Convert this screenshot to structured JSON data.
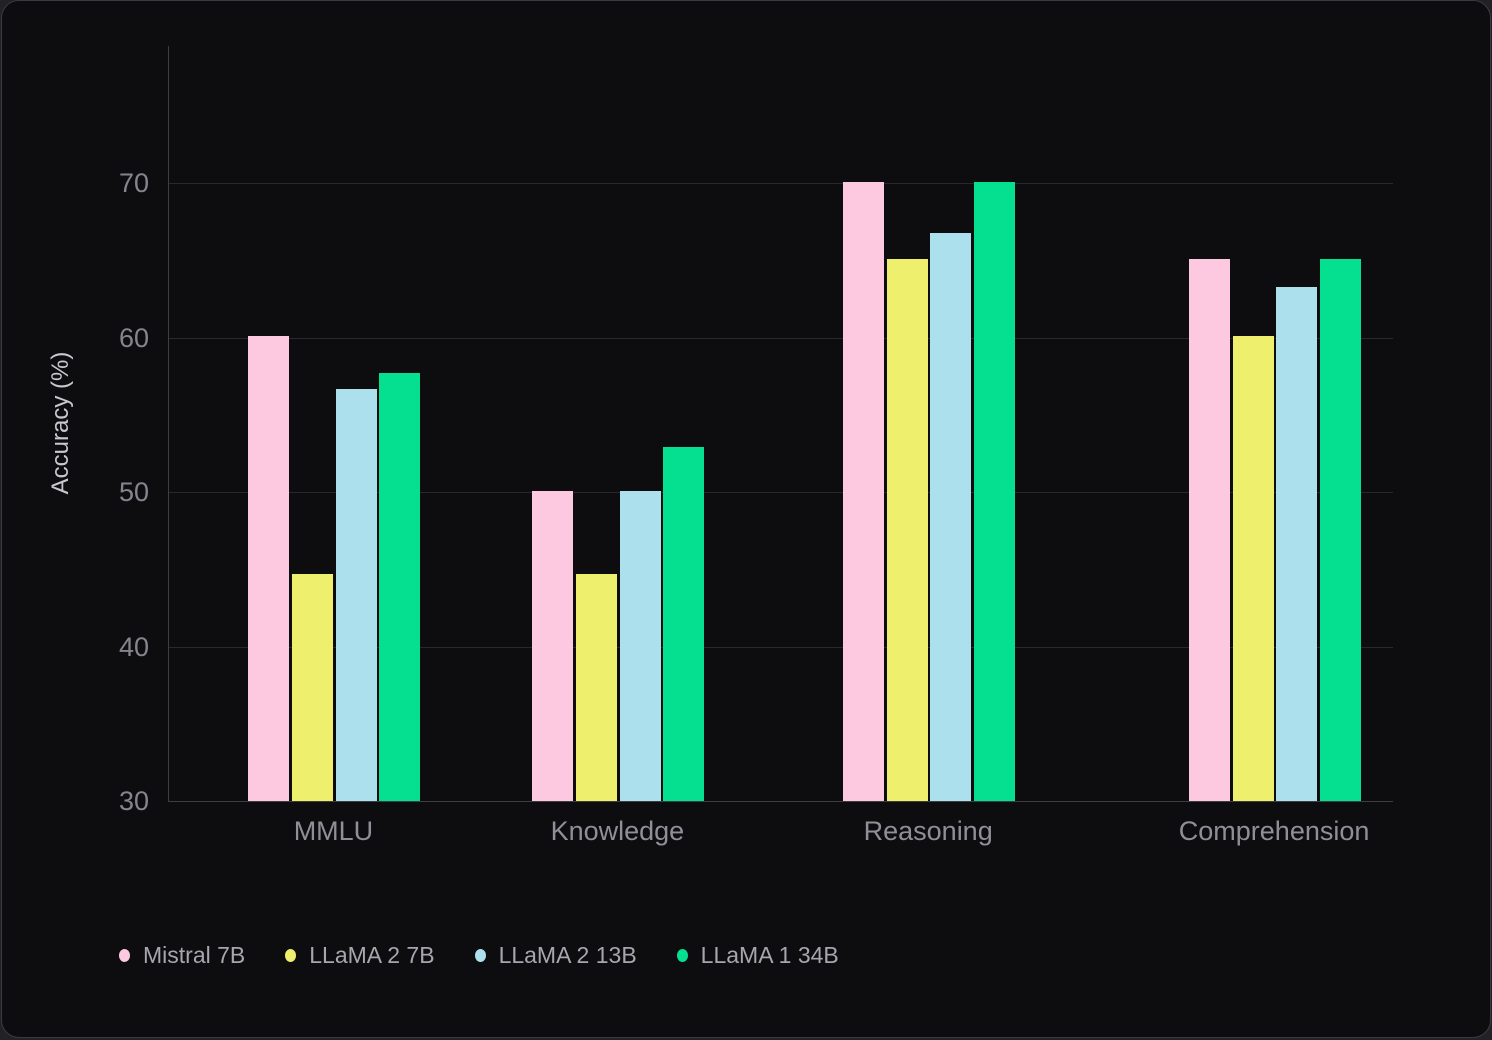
{
  "chart_data": {
    "type": "bar",
    "title": "",
    "xlabel": "",
    "ylabel": "Accuracy (%)",
    "categories": [
      "MMLU",
      "Knowledge",
      "Reasoning",
      "Comprehension"
    ],
    "series": [
      {
        "name": "Mistral 7B",
        "color": "#FDC9E1",
        "values": [
          60.1,
          50.1,
          70.1,
          65.1
        ]
      },
      {
        "name": "LLaMA 2 7B",
        "color": "#EDEF6D",
        "values": [
          44.7,
          44.7,
          65.1,
          60.1
        ]
      },
      {
        "name": "LLaMA 2 13B",
        "color": "#ACE0EC",
        "values": [
          56.7,
          50.1,
          66.8,
          63.3
        ]
      },
      {
        "name": "LLaMA 1 34B",
        "color": "#05DF90",
        "values": [
          57.7,
          52.9,
          70.1,
          65.1
        ]
      }
    ],
    "y_ticks": [
      30,
      40,
      50,
      60,
      70
    ],
    "ylim": [
      30,
      78.9
    ],
    "grid": true,
    "legend_position": "bottom-left"
  }
}
